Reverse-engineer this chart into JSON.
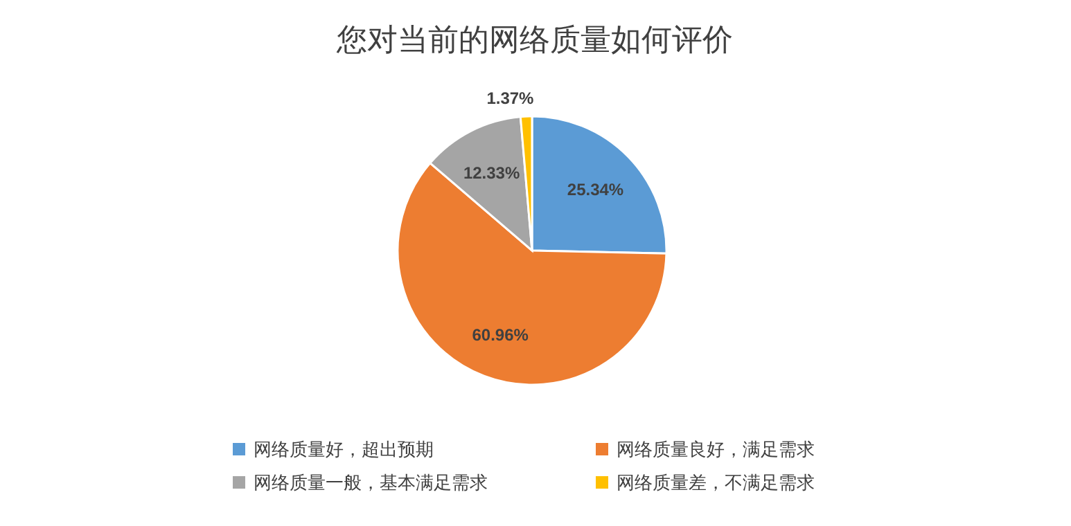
{
  "chart_data": {
    "type": "pie",
    "title": "您对当前的网络质量如何评价",
    "categories": [
      "网络质量好，超出预期",
      "网络质量良好，满足需求",
      "网络质量一般，基本满足需求",
      "网络质量差，不满足需求"
    ],
    "values": [
      25.34,
      60.96,
      12.33,
      1.37
    ],
    "colors": [
      "#5b9bd5",
      "#ed7d31",
      "#a5a5a5",
      "#ffc000"
    ],
    "value_labels": [
      "25.34%",
      "60.96%",
      "12.33%",
      "1.37%"
    ],
    "legend": "bottom"
  }
}
